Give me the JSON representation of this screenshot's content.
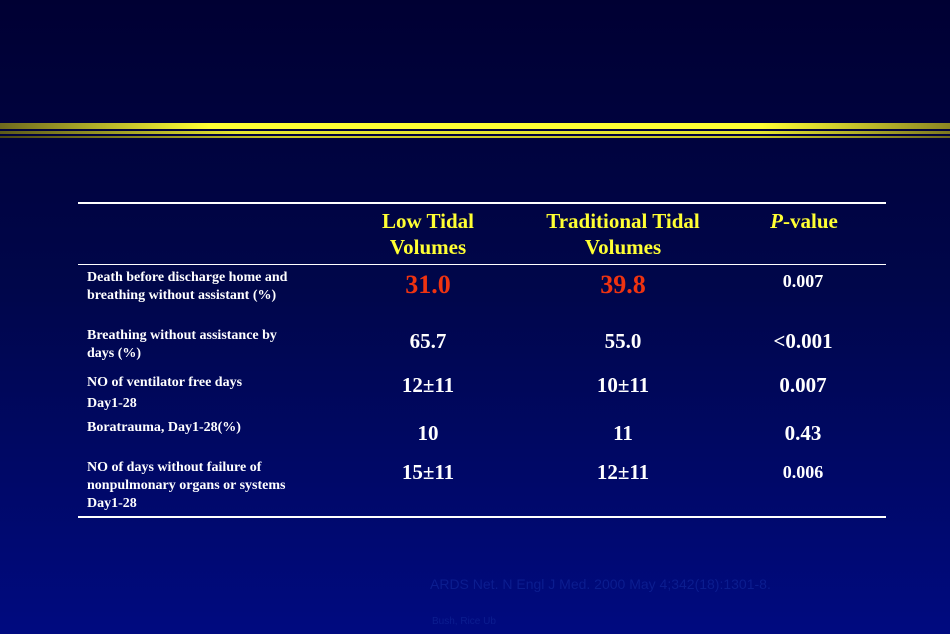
{
  "colors": {
    "background": "#00064a",
    "header": "#ffff33",
    "highlight": "#ee3311",
    "text": "#ffffff"
  },
  "table": {
    "headers": [
      {
        "lines": [
          "Low Tidal",
          "Volumes"
        ]
      },
      {
        "lines": [
          "Traditional Tidal",
          "Volumes"
        ]
      },
      {
        "p_italic": "P",
        "p_rest": "-value"
      }
    ],
    "rows": [
      {
        "label_lines": [
          "Death before discharge home and",
          "breathing without assistant (%)"
        ],
        "low": "31.0",
        "traditional": "39.8",
        "p": "0.007"
      },
      {
        "label_lines": [
          "Breathing without assistance by",
          "days (%)"
        ],
        "low": "65.7",
        "traditional": "55.0",
        "p": "<0.001"
      },
      {
        "label_lines": [
          "NO of  ventilator free days",
          "Day1-28"
        ],
        "low": "12±11",
        "traditional": "10±11",
        "p": "0.007"
      },
      {
        "label_lines": [
          "Boratrauma, Day1-28(%)"
        ],
        "low": "10",
        "traditional": "11",
        "p": "0.43"
      },
      {
        "label_lines": [
          "NO of days without failure of",
          "nonpulmonary  organs or systems",
          "Day1-28"
        ],
        "low": "15±11",
        "traditional": "12±11",
        "p": "0.006"
      }
    ]
  },
  "citation": "ARDS Net. N Engl J Med. 2000 May 4;342(18):1301-8.",
  "citation_small": "Bush, Rice Ub"
}
